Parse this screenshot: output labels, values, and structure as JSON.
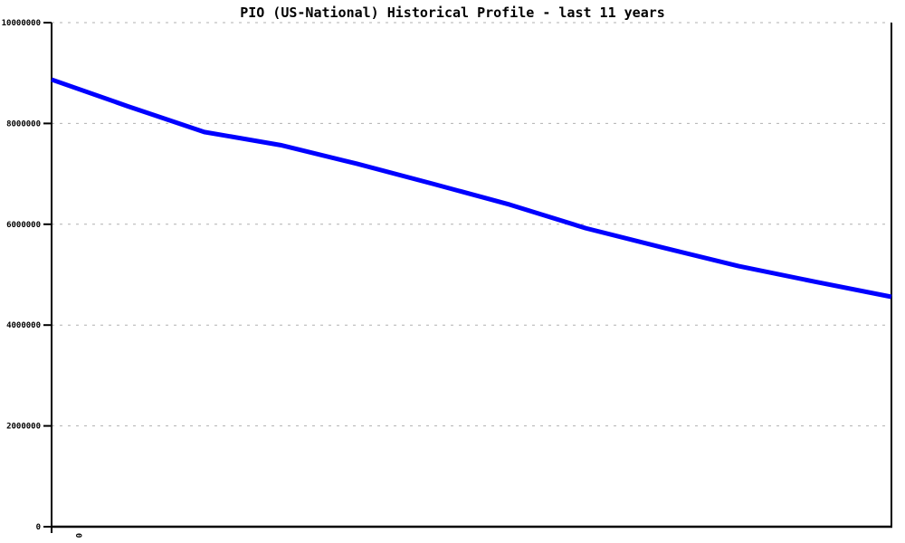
{
  "title": "PIO (US-National) Historical Profile - last 11 years",
  "chart_data": {
    "type": "line",
    "title": "PIO (US-National) Historical Profile - last 11 years",
    "xlabel": "",
    "ylabel": "",
    "x": [
      0,
      1,
      2,
      3,
      4,
      5,
      6,
      7,
      8,
      9,
      10,
      11
    ],
    "series": [
      {
        "name": "PIO (US-National)",
        "color": "#0000ff",
        "values": [
          8870000,
          8340000,
          7830000,
          7570000,
          7200000,
          6800000,
          6390000,
          5920000,
          5540000,
          5170000,
          4860000,
          4560000
        ]
      }
    ],
    "xlim": [
      0,
      11
    ],
    "ylim": [
      0,
      10000000
    ],
    "yticks": [
      0,
      2000000,
      4000000,
      6000000,
      8000000,
      10000000
    ],
    "ytick_labels": [
      "0",
      "2000000",
      "4000000",
      "6000000",
      "8000000",
      "10000000"
    ],
    "xtick_labels": [
      "0"
    ],
    "grid": "horizontal-dashed",
    "grid_color": "#b0b0b0",
    "axis_color": "#000000",
    "legend": "none"
  }
}
